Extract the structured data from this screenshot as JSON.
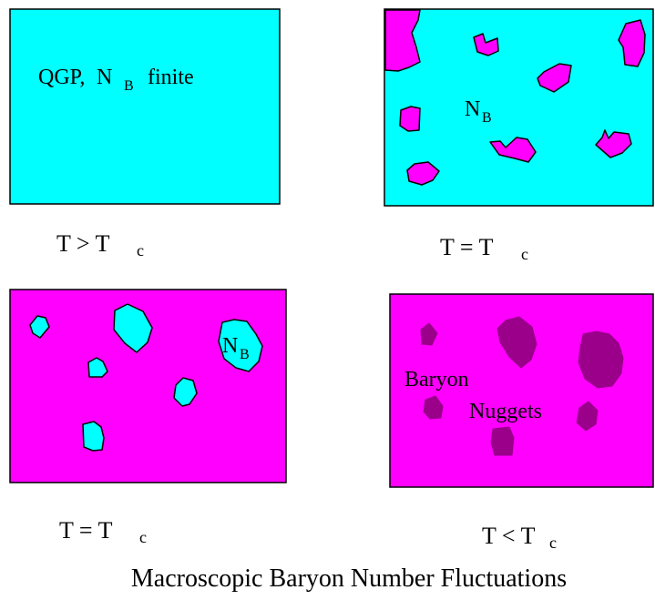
{
  "colors": {
    "cyan": "#00ffff",
    "magenta": "#ff00ff",
    "dark_magenta": "#9a008a",
    "outline": "#000000"
  },
  "panels": {
    "top_left": {
      "label_qgp": "QGP,",
      "label_n": "N",
      "label_n_sub": "B",
      "label_finite": "finite",
      "caption_t": "T > T",
      "caption_sub": "c"
    },
    "top_right": {
      "label_n": "N",
      "label_n_sub": "B",
      "caption_t": "T = T",
      "caption_sub": "c"
    },
    "bottom_left": {
      "label_n": "N",
      "label_n_sub": "B",
      "caption_t": "T = T",
      "caption_sub": "c"
    },
    "bottom_right": {
      "label_baryon": "Baryon",
      "label_nuggets": "Nuggets",
      "caption_t": "T < T",
      "caption_sub": "c"
    }
  },
  "figure_caption": "Macroscopic Baryon Number Fluctuations"
}
